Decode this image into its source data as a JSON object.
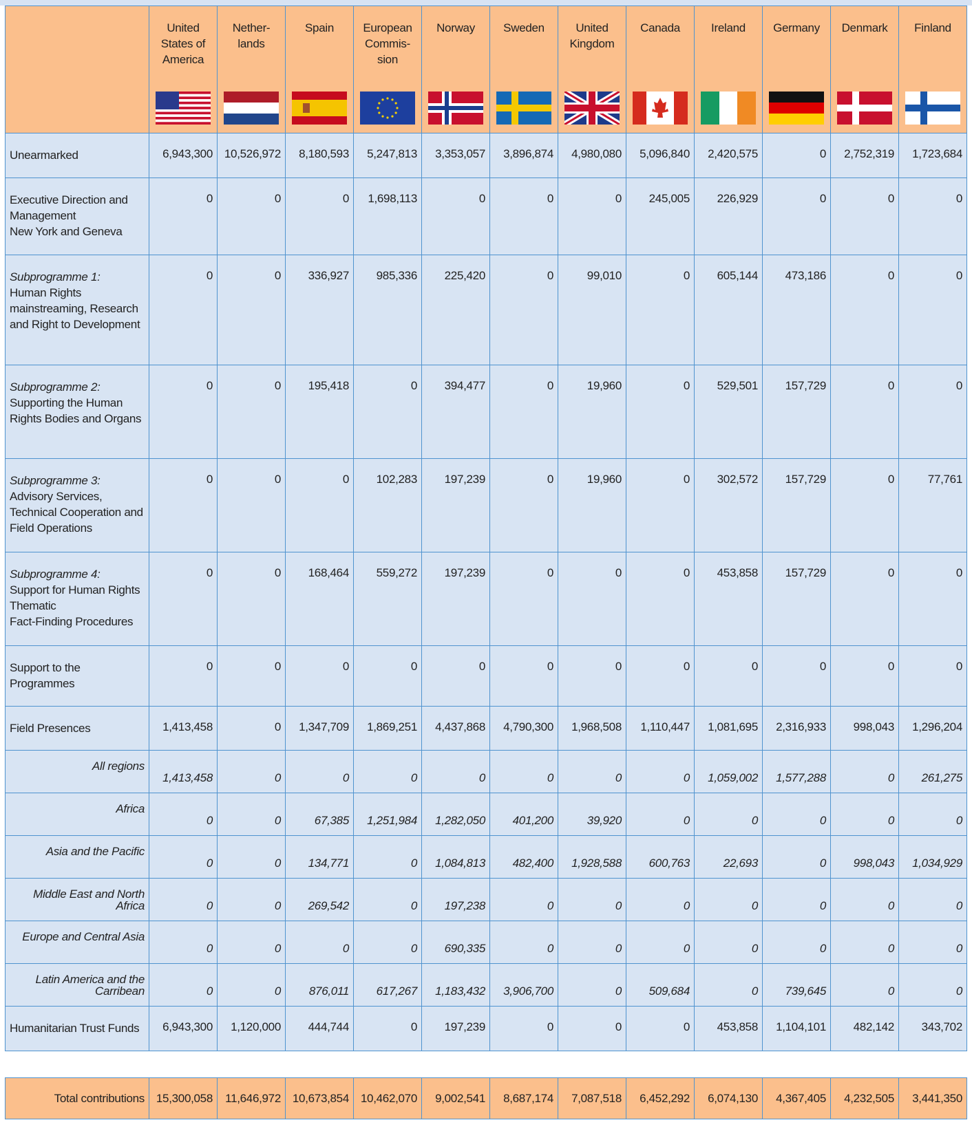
{
  "header": {
    "countries": [
      "United\nStates of\nAmerica",
      "Nether-\nlands",
      "Spain",
      "European\nCommis-\nsion",
      "Norway",
      "Sweden",
      "United\nKingdom",
      "Canada",
      "Ireland",
      "Germany",
      "Denmark",
      "Finland"
    ]
  },
  "table": {
    "rows": [
      {
        "label": "Unearmarked",
        "values": [
          "6,943,300",
          "10,526,972",
          "8,180,593",
          "5,247,813",
          "3,353,057",
          "3,896,874",
          "4,980,080",
          "5,096,840",
          "2,420,575",
          "0",
          "2,752,319",
          "1,723,684"
        ]
      },
      {
        "label": "Executive Direction and Management\nNew York and Geneva",
        "values": [
          "0",
          "0",
          "0",
          "1,698,113",
          "0",
          "0",
          "0",
          "245,005",
          "226,929",
          "0",
          "0",
          "0"
        ]
      },
      {
        "label_prefix": "Subprogramme 1:",
        "label": "Human Rights mainstreaming, Research and Right to Development",
        "values": [
          "0",
          "0",
          "336,927",
          "985,336",
          "225,420",
          "0",
          "99,010",
          "0",
          "605,144",
          "473,186",
          "0",
          "0"
        ]
      },
      {
        "label_prefix": "Subprogramme 2:",
        "label": "Supporting the Human Rights Bodies and Organs",
        "values": [
          "0",
          "0",
          "195,418",
          "0",
          "394,477",
          "0",
          "19,960",
          "0",
          "529,501",
          "157,729",
          "0",
          "0"
        ]
      },
      {
        "label_prefix": "Subprogramme 3:",
        "label": "Advisory Services, Technical Cooperation and Field Operations",
        "values": [
          "0",
          "0",
          "0",
          "102,283",
          "197,239",
          "0",
          "19,960",
          "0",
          "302,572",
          "157,729",
          "0",
          "77,761"
        ]
      },
      {
        "label_prefix": "Subprogramme 4:",
        "label": "Support for Human Rights Thematic\nFact-Finding Procedures",
        "values": [
          "0",
          "0",
          "168,464",
          "559,272",
          "197,239",
          "0",
          "0",
          "0",
          "453,858",
          "157,729",
          "0",
          "0"
        ]
      },
      {
        "label": "Support to the Programmes",
        "values": [
          "0",
          "0",
          "0",
          "0",
          "0",
          "0",
          "0",
          "0",
          "0",
          "0",
          "0",
          "0"
        ]
      },
      {
        "label": "Field Presences",
        "values": [
          "1,413,458",
          "0",
          "1,347,709",
          "1,869,251",
          "4,437,868",
          "4,790,300",
          "1,968,508",
          "1,110,447",
          "1,081,695",
          "2,316,933",
          "998,043",
          "1,296,204"
        ],
        "regions": [
          {
            "label": "All regions",
            "values": [
              "1,413,458",
              "0",
              "0",
              "0",
              "0",
              "0",
              "0",
              "0",
              "1,059,002",
              "1,577,288",
              "0",
              "261,275"
            ]
          },
          {
            "label": "Africa",
            "values": [
              "0",
              "0",
              "67,385",
              "1,251,984",
              "1,282,050",
              "401,200",
              "39,920",
              "0",
              "0",
              "0",
              "0",
              "0"
            ]
          },
          {
            "label": "Asia and the Pacific",
            "values": [
              "0",
              "0",
              "134,771",
              "0",
              "1,084,813",
              "482,400",
              "1,928,588",
              "600,763",
              "22,693",
              "0",
              "998,043",
              "1,034,929"
            ]
          },
          {
            "label": "Middle East and North Africa",
            "values": [
              "0",
              "0",
              "269,542",
              "0",
              "197,238",
              "0",
              "0",
              "0",
              "0",
              "0",
              "0",
              "0"
            ]
          },
          {
            "label": "Europe and Central Asia",
            "values": [
              "0",
              "0",
              "0",
              "0",
              "690,335",
              "0",
              "0",
              "0",
              "0",
              "0",
              "0",
              "0"
            ]
          },
          {
            "label": "Latin America and the Carribean",
            "values": [
              "0",
              "0",
              "876,011",
              "617,267",
              "1,183,432",
              "3,906,700",
              "0",
              "509,684",
              "0",
              "739,645",
              "0",
              "0"
            ]
          }
        ]
      },
      {
        "label": "Humanitarian Trust Funds",
        "values": [
          "6,943,300",
          "1,120,000",
          "444,744",
          "0",
          "197,239",
          "0",
          "0",
          "0",
          "453,858",
          "1,104,101",
          "482,142",
          "343,702"
        ]
      }
    ]
  },
  "total": {
    "label": "Total contributions",
    "values": [
      "15,300,058",
      "11,646,972",
      "10,673,854",
      "10,462,070",
      "9,002,541",
      "8,687,174",
      "7,087,518",
      "6,452,292",
      "6,074,130",
      "4,367,405",
      "4,232,505",
      "3,441,350"
    ]
  }
}
